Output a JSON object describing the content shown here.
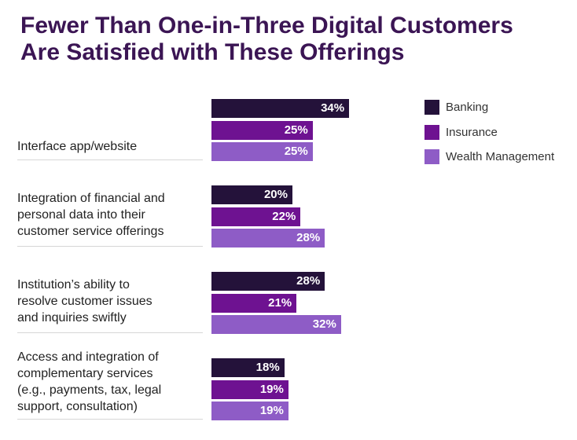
{
  "chart_data": {
    "type": "bar",
    "orientation": "horizontal",
    "title": "Fewer Than One-in-Three Digital Customers Are Satisfied with These Offerings",
    "title_lines": [
      "Fewer Than One-in-Three Digital Customers",
      "Are Satisfied with These Offerings"
    ],
    "categories": [
      "Interface app/website",
      "Integration of financial and personal data into their customer service offerings",
      "Institution’s ability to resolve customer issues and inquiries swiftly",
      "Access and integration of complementary services (e.g., payments, tax, legal support, consultation)"
    ],
    "category_lines": [
      [
        "Interface app/website"
      ],
      [
        "Integration of financial and",
        "personal data into their",
        "customer service offerings"
      ],
      [
        "Institution’s ability to",
        "resolve customer issues",
        "and inquiries swiftly"
      ],
      [
        "Access and integration of",
        "complementary services",
        "(e.g., payments, tax, legal",
        "support, consultation)"
      ]
    ],
    "series": [
      {
        "name": "Banking",
        "color": "#24123a",
        "values": [
          34,
          20,
          28,
          18
        ]
      },
      {
        "name": "Insurance",
        "color": "#6e1291",
        "values": [
          25,
          22,
          21,
          19
        ]
      },
      {
        "name": "Wealth Management",
        "color": "#8e5cc6",
        "values": [
          25,
          28,
          32,
          19
        ]
      }
    ],
    "value_suffix": "%",
    "xlim": [
      0,
      100
    ],
    "legend_position": "top-right",
    "xlabel": "",
    "ylabel": ""
  }
}
